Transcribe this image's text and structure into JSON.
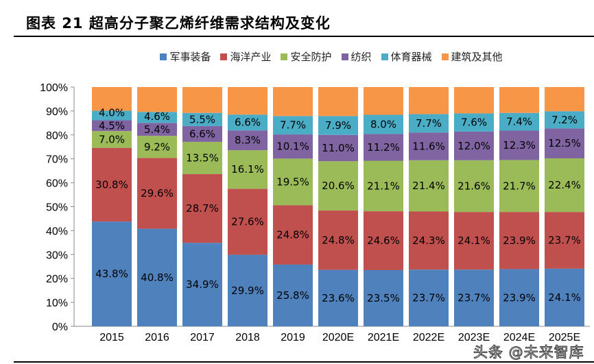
{
  "title": "图表 21  超高分子聚乙烯纤维需求结构及变化",
  "watermark": "头条 @未来智库",
  "chart_data": {
    "type": "bar",
    "stacked": true,
    "categories": [
      "2015",
      "2016",
      "2017",
      "2018",
      "2019",
      "2020E",
      "2021E",
      "2022E",
      "2023E",
      "2024E",
      "2025E"
    ],
    "series": [
      {
        "name": "军事装备",
        "color": "#4F81BD",
        "values": [
          43.8,
          40.8,
          34.9,
          29.9,
          25.8,
          23.6,
          23.5,
          23.7,
          23.7,
          23.9,
          24.1
        ],
        "labeled": true
      },
      {
        "name": "海洋产业",
        "color": "#C0504D",
        "values": [
          30.8,
          29.6,
          28.7,
          27.6,
          24.8,
          24.8,
          24.6,
          24.3,
          24.1,
          23.9,
          23.7
        ],
        "labeled": true
      },
      {
        "name": "安全防护",
        "color": "#9BBB59",
        "values": [
          7.0,
          9.2,
          13.5,
          16.1,
          19.5,
          20.6,
          21.1,
          21.4,
          21.6,
          21.7,
          22.4
        ],
        "labeled": true
      },
      {
        "name": "纺织",
        "color": "#8064A2",
        "values": [
          4.5,
          5.4,
          6.6,
          8.3,
          10.1,
          11.0,
          11.2,
          11.6,
          12.0,
          12.3,
          12.5
        ],
        "labeled": true
      },
      {
        "name": "体育器械",
        "color": "#4BACC6",
        "values": [
          4.0,
          4.6,
          5.5,
          6.6,
          7.7,
          7.9,
          8.0,
          7.7,
          7.6,
          7.4,
          7.2
        ],
        "labeled": true
      },
      {
        "name": "建筑及其他",
        "color": "#F79646",
        "values": [
          9.9,
          10.4,
          10.8,
          11.5,
          12.1,
          12.1,
          11.6,
          11.3,
          11.0,
          10.8,
          10.1
        ],
        "labeled": false
      }
    ],
    "yticks": [
      "0%",
      "10%",
      "20%",
      "30%",
      "40%",
      "50%",
      "60%",
      "70%",
      "80%",
      "90%",
      "100%"
    ],
    "ylim": [
      0,
      100
    ],
    "grid": false,
    "legend": "top"
  }
}
